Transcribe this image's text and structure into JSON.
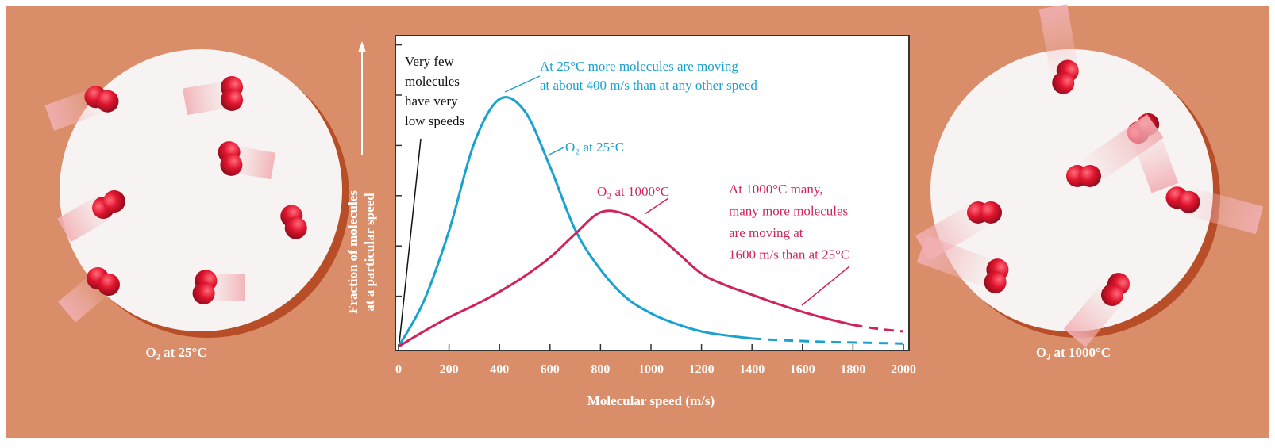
{
  "chart_data": {
    "type": "line",
    "xlabel": "Molecular speed (m/s)",
    "ylabel": [
      "Fraction of molecules",
      "at a particular speed"
    ],
    "x": [
      0,
      100,
      200,
      300,
      400,
      500,
      600,
      700,
      800,
      900,
      1000,
      1100,
      1200,
      1300,
      1400,
      1500,
      1600,
      1700,
      1800,
      1900,
      2000
    ],
    "series": [
      {
        "name": "O₂ at 25°C",
        "color": "#19a2cf",
        "dash_from_x": 1400,
        "values": [
          0,
          0.9,
          2.3,
          4.05,
          4.92,
          4.68,
          3.58,
          2.32,
          1.53,
          0.98,
          0.66,
          0.45,
          0.3,
          0.22,
          0.16,
          0.13,
          0.11,
          0.09,
          0.08,
          0.07,
          0.06
        ]
      },
      {
        "name": "O₂ at 1000°C",
        "color": "#d0235e",
        "dash_from_x": 1800,
        "values": [
          0,
          0.3,
          0.58,
          0.82,
          1.09,
          1.4,
          1.77,
          2.24,
          2.67,
          2.63,
          2.32,
          1.89,
          1.45,
          1.21,
          1.03,
          0.85,
          0.69,
          0.55,
          0.43,
          0.35,
          0.3
        ]
      }
    ],
    "xlim": [
      0,
      2000
    ],
    "xticks": [
      0,
      200,
      400,
      600,
      800,
      1000,
      1200,
      1400,
      1600,
      1800,
      2000
    ],
    "ylim": [
      0,
      6
    ],
    "yticks": [
      1,
      2,
      3,
      4,
      5,
      6
    ],
    "annotations": [
      {
        "lines": [
          "Very few",
          "molecules",
          "have very",
          "low speeds"
        ],
        "color": "#111111"
      },
      {
        "lines": [
          "At 25°C more molecules are moving",
          "at about 400 m/s than at any other speed"
        ],
        "color": "#19a2cf"
      },
      {
        "lines": [
          "At 1000°C many,",
          "many more molecules",
          "are moving at",
          "1600 m/s than at 25°C"
        ],
        "color": "#d0235e"
      }
    ],
    "panel_captions": [
      "O₂ at 25°C",
      "O₂ at 1000°C"
    ]
  }
}
